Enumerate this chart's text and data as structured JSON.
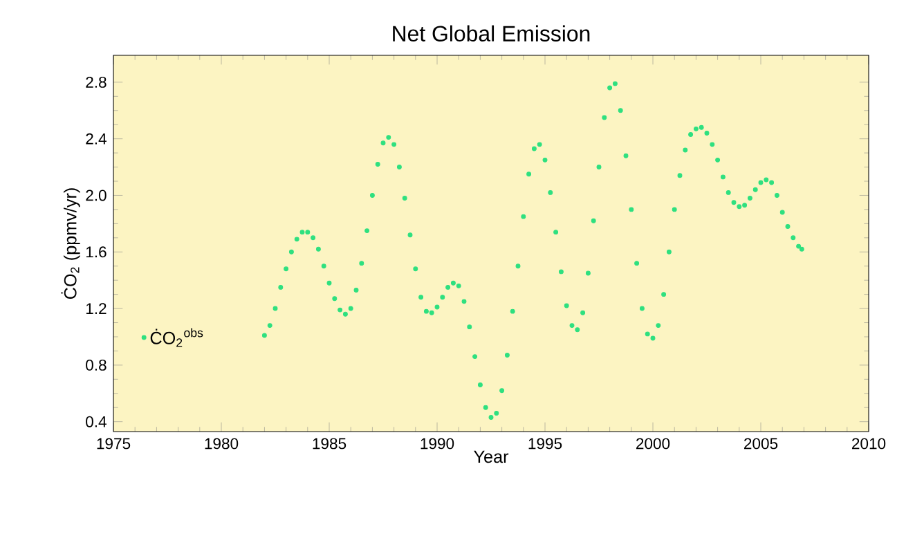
{
  "chart_data": {
    "type": "scatter",
    "title": "Net Global Emission",
    "xlabel": "Year",
    "ylabel": "ĊO$_{2}$ (ppmv/yr)",
    "xlim": [
      1975,
      2010
    ],
    "xticks": [
      1975,
      1980,
      1985,
      1990,
      1995,
      2000,
      2005,
      2010
    ],
    "ylim": [
      0.33,
      2.99
    ],
    "yticks": [
      0.4,
      0.8,
      1.2,
      1.6,
      {
        "value": 2.0,
        "label": "2.0"
      },
      2.4,
      2.8
    ],
    "legend": "left",
    "marker": "circle",
    "series": [
      {
        "name": "ĊO$_{2}$$^{obs}$",
        "color": "#2ee07f",
        "x": [
          1982.0,
          1982.25,
          1982.5,
          1982.75,
          1983.0,
          1983.25,
          1983.5,
          1983.75,
          1984.0,
          1984.25,
          1984.5,
          1984.75,
          1985.0,
          1985.25,
          1985.5,
          1985.75,
          1986.0,
          1986.25,
          1986.5,
          1986.75,
          1987.0,
          1987.25,
          1987.5,
          1987.75,
          1988.0,
          1988.25,
          1988.5,
          1988.75,
          1989.0,
          1989.25,
          1989.5,
          1989.75,
          1990.0,
          1990.25,
          1990.5,
          1990.75,
          1991.0,
          1991.25,
          1991.5,
          1991.75,
          1992.0,
          1992.25,
          1992.5,
          1992.75,
          1993.0,
          1993.25,
          1993.5,
          1993.75,
          1994.0,
          1994.25,
          1994.5,
          1994.75,
          1995.0,
          1995.25,
          1995.5,
          1995.75,
          1996.0,
          1996.25,
          1996.5,
          1996.75,
          1997.0,
          1997.25,
          1997.5,
          1997.75,
          1998.0,
          1998.25,
          1998.5,
          1998.75,
          1999.0,
          1999.25,
          1999.5,
          1999.75,
          2000.0,
          2000.25,
          2000.5,
          2000.75,
          2001.0,
          2001.25,
          2001.5,
          2001.75,
          2002.0,
          2002.25,
          2002.5,
          2002.75,
          2003.0,
          2003.25,
          2003.5,
          2003.75,
          2004.0,
          2004.25,
          2004.5,
          2004.75,
          2005.0,
          2005.25,
          2005.5,
          2005.75,
          2006.0,
          2006.25,
          2006.5,
          2006.75,
          2006.9
        ],
        "values": [
          1.01,
          1.08,
          1.2,
          1.35,
          1.48,
          1.6,
          1.69,
          1.74,
          1.74,
          1.7,
          1.62,
          1.5,
          1.38,
          1.27,
          1.19,
          1.16,
          1.2,
          1.33,
          1.52,
          1.75,
          2.0,
          2.22,
          2.37,
          2.41,
          2.36,
          2.2,
          1.98,
          1.72,
          1.48,
          1.28,
          1.18,
          1.17,
          1.21,
          1.28,
          1.35,
          1.38,
          1.36,
          1.25,
          1.07,
          0.86,
          0.66,
          0.5,
          0.43,
          0.46,
          0.62,
          0.87,
          1.18,
          1.5,
          1.85,
          2.15,
          2.33,
          2.36,
          2.25,
          2.02,
          1.74,
          1.46,
          1.22,
          1.08,
          1.05,
          1.17,
          1.45,
          1.82,
          2.2,
          2.55,
          2.76,
          2.79,
          2.6,
          2.28,
          1.9,
          1.52,
          1.2,
          1.02,
          0.99,
          1.08,
          1.3,
          1.6,
          1.9,
          2.14,
          2.32,
          2.43,
          2.47,
          2.48,
          2.44,
          2.36,
          2.25,
          2.13,
          2.02,
          1.95,
          1.92,
          1.93,
          1.98,
          2.04,
          2.09,
          2.11,
          2.09,
          2.0,
          1.88,
          1.78,
          1.7,
          1.64,
          1.62
        ]
      }
    ]
  }
}
